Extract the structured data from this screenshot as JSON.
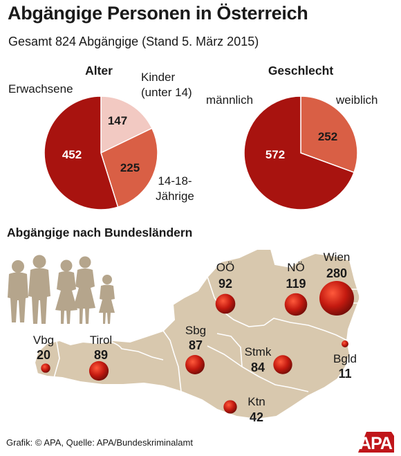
{
  "header": {
    "title": "Abgängige Personen in Österreich",
    "subtitle": "Gesamt 824 Abgängige (Stand 5. März 2015)"
  },
  "colors": {
    "dark_red": "#a8130f",
    "mid_red": "#d95f45",
    "light_pink": "#f2c9c2",
    "map_fill": "#d8c8ae",
    "people_fill": "#b5a58c",
    "bubble": "#c41a10"
  },
  "chart_data": [
    {
      "type": "pie",
      "title": "Alter",
      "categories": [
        "Erwachsene",
        "Kinder (unter 14)",
        "14-18-Jährige"
      ],
      "label_lines": [
        [
          "Erwachsene"
        ],
        [
          "Kinder",
          "(unter 14)"
        ],
        [
          "14-18-",
          "Jährige"
        ]
      ],
      "values": [
        452,
        147,
        225
      ],
      "colors": [
        "#a8130f",
        "#f2c9c2",
        "#d95f45"
      ]
    },
    {
      "type": "pie",
      "title": "Geschlecht",
      "categories": [
        "männlich",
        "weiblich"
      ],
      "label_lines": [
        [
          "männlich"
        ],
        [
          "weiblich"
        ]
      ],
      "values": [
        572,
        252
      ],
      "colors": [
        "#a8130f",
        "#d95f45"
      ]
    },
    {
      "type": "bubble-map",
      "title": "Abgängige nach Bundesländern",
      "regions": [
        "Vbg",
        "Tirol",
        "Sbg",
        "OÖ",
        "NÖ",
        "Wien",
        "Stmk",
        "Ktn",
        "Bgld"
      ],
      "values": [
        20,
        89,
        87,
        92,
        119,
        280,
        84,
        42,
        11
      ]
    }
  ],
  "footer": {
    "source": "Grafik: © APA, Quelle: APA/Bundeskriminalamt",
    "logo": "APA"
  }
}
